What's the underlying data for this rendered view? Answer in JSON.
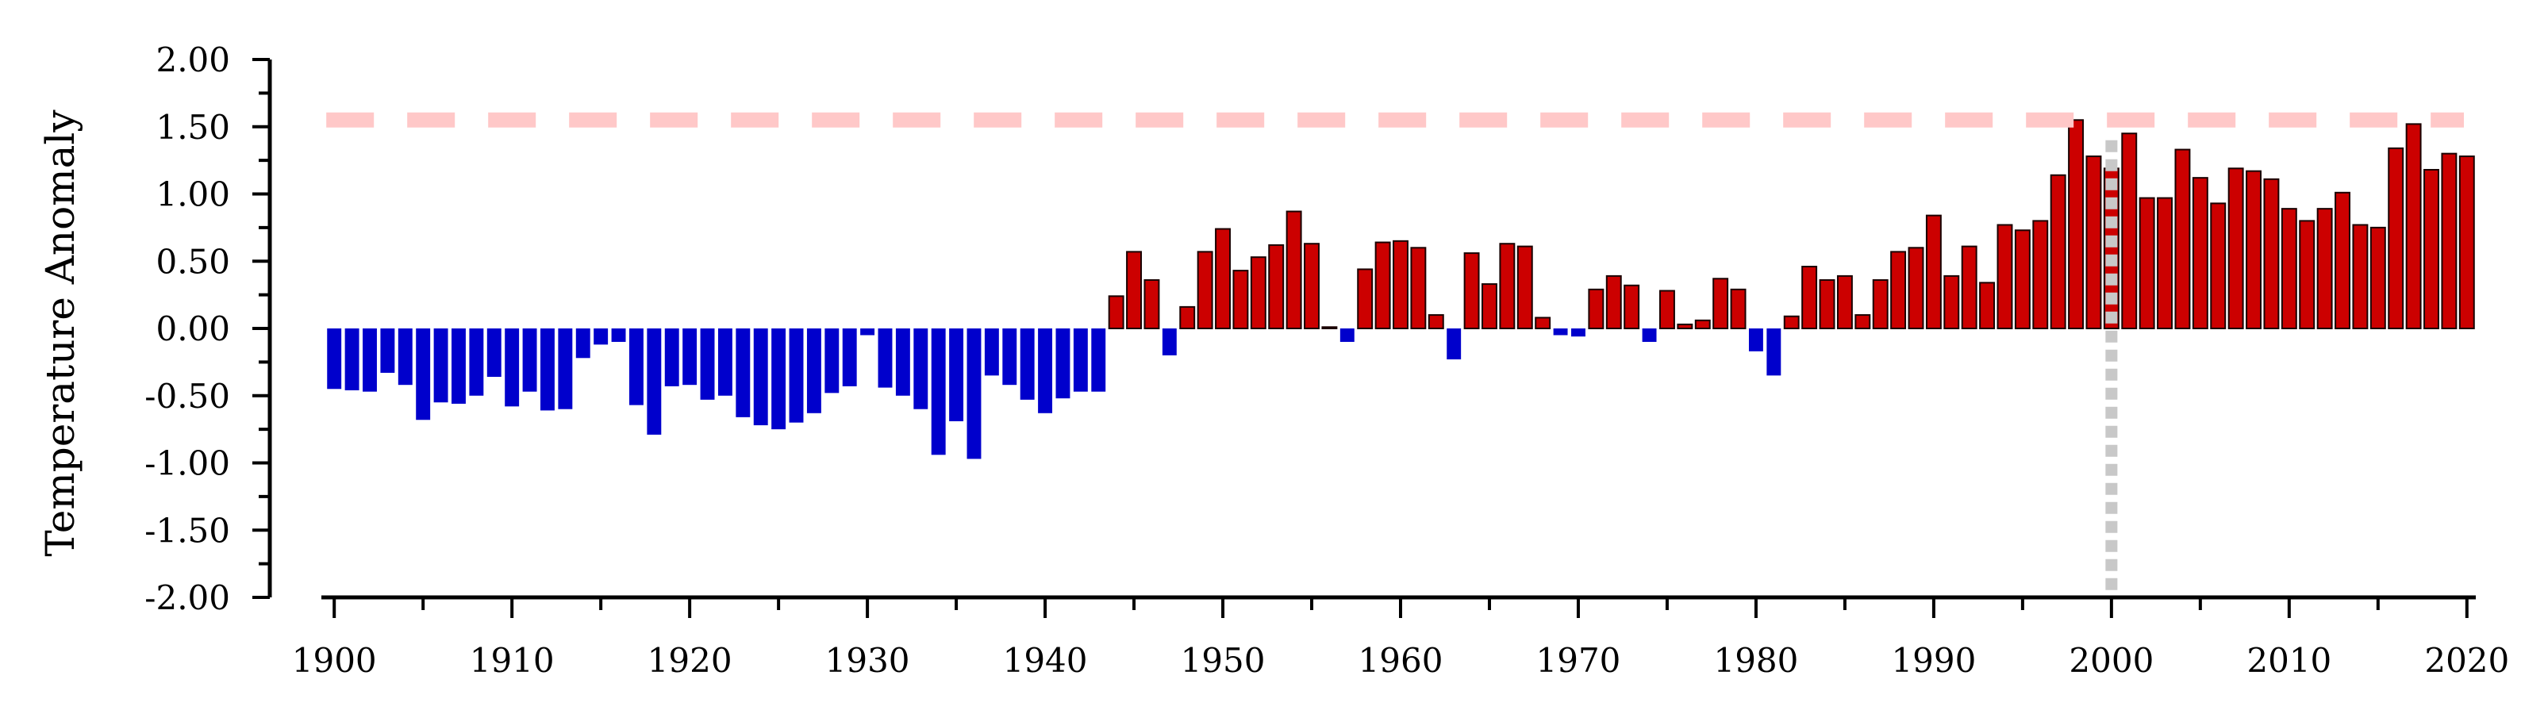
{
  "chart_data": {
    "type": "bar",
    "title": "",
    "xlabel": "",
    "ylabel": "Temperature Anomaly",
    "xlim": [
      1899.5,
      2020.5
    ],
    "ylim": [
      -2.0,
      2.0
    ],
    "x_ticks": [
      "1900",
      "1910",
      "1920",
      "1930",
      "1940",
      "1950",
      "1960",
      "1970",
      "1980",
      "1990",
      "2000",
      "2010",
      "2020"
    ],
    "y_ticks": [
      "2.00",
      "1.50",
      "1.00",
      "0.50",
      "0.00",
      "-0.50",
      "-1.00",
      "-1.50",
      "-2.00"
    ],
    "grid": false,
    "legend": "none",
    "colors": {
      "positive": "#cc0000",
      "negative": "#0000cc",
      "threshold_line": "#ffc8c8",
      "marker_line": "#c8c8c8"
    },
    "threshold_line": {
      "y": 1.55
    },
    "marker_line": {
      "x": 2000,
      "y_from": -2.0,
      "y_to": 1.4
    },
    "years": [
      1900,
      1901,
      1902,
      1903,
      1904,
      1905,
      1906,
      1907,
      1908,
      1909,
      1910,
      1911,
      1912,
      1913,
      1914,
      1915,
      1916,
      1917,
      1918,
      1919,
      1920,
      1921,
      1922,
      1923,
      1924,
      1925,
      1926,
      1927,
      1928,
      1929,
      1930,
      1931,
      1932,
      1933,
      1934,
      1935,
      1936,
      1937,
      1938,
      1939,
      1940,
      1941,
      1942,
      1943,
      1944,
      1945,
      1946,
      1947,
      1948,
      1949,
      1950,
      1951,
      1952,
      1953,
      1954,
      1955,
      1956,
      1957,
      1958,
      1959,
      1960,
      1961,
      1962,
      1963,
      1964,
      1965,
      1966,
      1967,
      1968,
      1969,
      1970,
      1971,
      1972,
      1973,
      1974,
      1975,
      1976,
      1977,
      1978,
      1979,
      1980,
      1981,
      1982,
      1983,
      1984,
      1985,
      1986,
      1987,
      1988,
      1989,
      1990,
      1991,
      1992,
      1993,
      1994,
      1995,
      1996,
      1997,
      1998,
      1999,
      2000,
      2001,
      2002,
      2003,
      2004,
      2005,
      2006,
      2007,
      2008,
      2009,
      2010,
      2011,
      2012,
      2013,
      2014,
      2015,
      2016,
      2017,
      2018,
      2019,
      2020
    ],
    "values": [
      -0.45,
      -0.46,
      -0.47,
      -0.33,
      -0.42,
      -0.68,
      -0.55,
      -0.56,
      -0.5,
      -0.36,
      -0.58,
      -0.47,
      -0.61,
      -0.6,
      -0.22,
      -0.12,
      -0.1,
      -0.57,
      -0.79,
      -0.43,
      -0.42,
      -0.53,
      -0.5,
      -0.66,
      -0.72,
      -0.75,
      -0.7,
      -0.63,
      -0.48,
      -0.43,
      -0.05,
      -0.44,
      -0.5,
      -0.6,
      -0.94,
      -0.69,
      -0.97,
      -0.35,
      -0.42,
      -0.53,
      -0.63,
      -0.52,
      -0.47,
      -0.47,
      0.24,
      0.57,
      0.36,
      -0.2,
      0.16,
      0.57,
      0.74,
      0.43,
      0.53,
      0.62,
      0.87,
      0.63,
      0.01,
      -0.1,
      0.44,
      0.64,
      0.65,
      0.6,
      0.1,
      -0.23,
      0.56,
      0.33,
      0.63,
      0.61,
      0.08,
      -0.05,
      -0.06,
      0.29,
      0.39,
      0.32,
      -0.1,
      0.28,
      0.03,
      0.06,
      0.37,
      0.29,
      -0.17,
      -0.35,
      0.09,
      0.46,
      0.36,
      0.39,
      0.1,
      0.36,
      0.57,
      0.6,
      0.84,
      0.39,
      0.61,
      0.34,
      0.77,
      0.73,
      0.8,
      1.14,
      1.55,
      1.28,
      1.19,
      1.45,
      0.97,
      0.97,
      1.33,
      1.12,
      0.93,
      1.19,
      1.17,
      1.11,
      0.89,
      0.8,
      0.89,
      1.01,
      0.77,
      0.75,
      1.34,
      1.52,
      1.18,
      1.3,
      1.28
    ]
  }
}
